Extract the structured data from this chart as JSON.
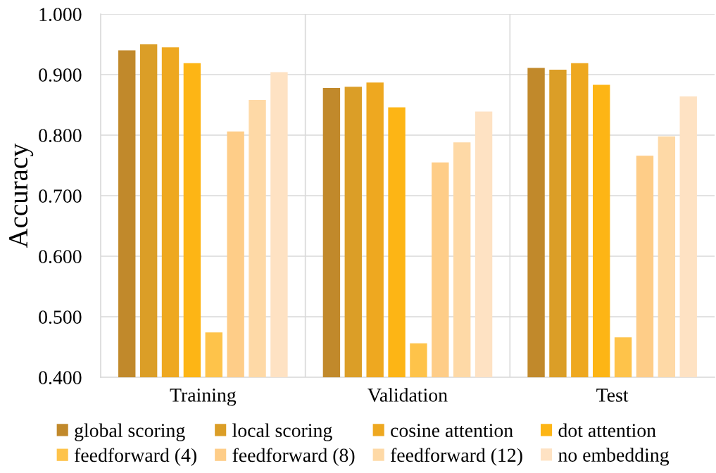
{
  "chart_data": {
    "type": "bar",
    "ylabel": "Accuracy",
    "categories": [
      "Training",
      "Validation",
      "Test"
    ],
    "series": [
      {
        "name": "global scoring",
        "color": "#c1892b",
        "values": [
          0.94,
          0.878,
          0.911
        ]
      },
      {
        "name": "local scoring",
        "color": "#db9e27",
        "values": [
          0.95,
          0.88,
          0.908
        ]
      },
      {
        "name": "cosine attention",
        "color": "#eea820",
        "values": [
          0.945,
          0.887,
          0.919
        ]
      },
      {
        "name": "dot attention",
        "color": "#fdb515",
        "values": [
          0.919,
          0.846,
          0.883
        ]
      },
      {
        "name": "feedforward (4)",
        "color": "#fec34a",
        "values": [
          0.474,
          0.456,
          0.466
        ]
      },
      {
        "name": "feedforward (8)",
        "color": "#fecd88",
        "values": [
          0.806,
          0.755,
          0.766
        ]
      },
      {
        "name": "feedforward (12)",
        "color": "#fed9a6",
        "values": [
          0.858,
          0.788,
          0.798
        ]
      },
      {
        "name": "no embedding",
        "color": "#fee2c3",
        "values": [
          0.904,
          0.839,
          0.864
        ]
      }
    ],
    "ylim": [
      0.4,
      1.0
    ],
    "yticks": [
      {
        "value": 0.4,
        "label": "0.400"
      },
      {
        "value": 0.5,
        "label": "0.500"
      },
      {
        "value": 0.6,
        "label": "0.600"
      },
      {
        "value": 0.7,
        "label": "0.700"
      },
      {
        "value": 0.8,
        "label": "0.800"
      },
      {
        "value": 0.9,
        "label": "0.900"
      },
      {
        "value": 1.0,
        "label": "1.000"
      }
    ],
    "grid": true,
    "legend": "bottom"
  }
}
